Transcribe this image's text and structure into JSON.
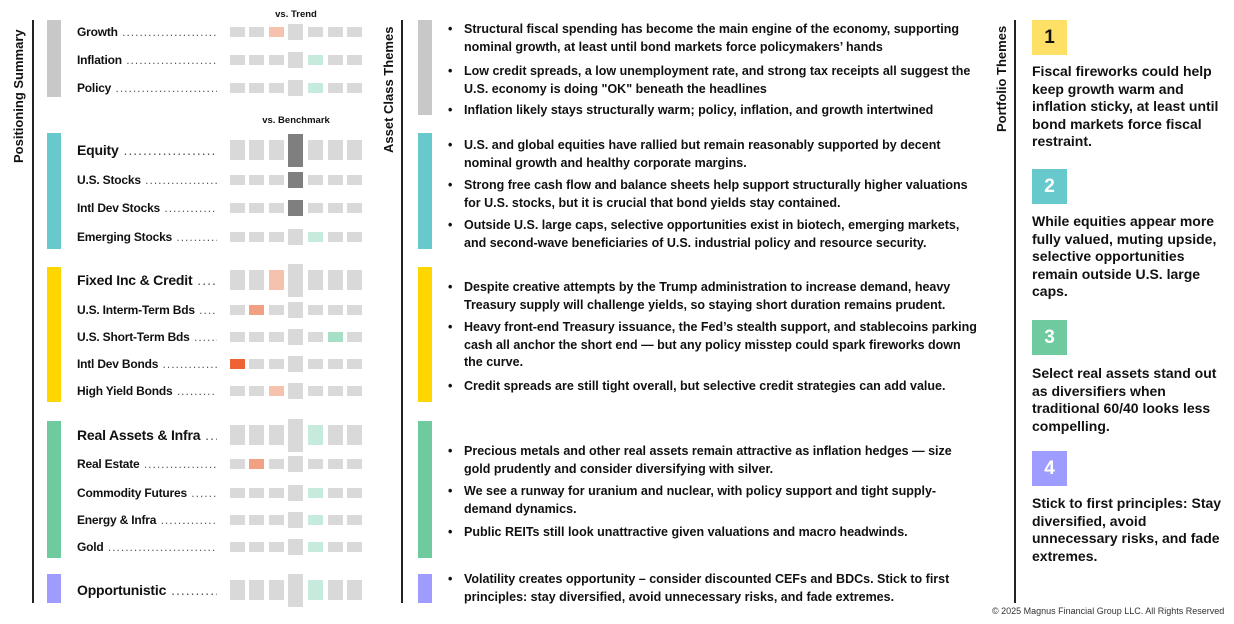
{
  "positioning": {
    "title": "Positioning Summary",
    "header_trend": "vs. Trend",
    "header_benchmark": "vs. Benchmark",
    "colors": {
      "-3": "#ef6234",
      "-2": "#f2a083",
      "-1": "#f5c2ae",
      "0": "#d9d9d9",
      "1": "#c6eadb",
      "2": "#a6dfc6",
      "neutral_hold": "#7f7f7f"
    },
    "groups": [
      {
        "color": "#c8c8c8",
        "rows": [
          {
            "label": "Growth",
            "category": false,
            "score": -1
          },
          {
            "label": "Inflation",
            "category": false,
            "score": 1
          },
          {
            "label": "Policy",
            "category": false,
            "score": 1
          }
        ]
      },
      {
        "color": "#67c9cc",
        "rows": [
          {
            "label": "Equity",
            "category": true,
            "score": 0,
            "neutral_marked": true
          },
          {
            "label": "U.S. Stocks",
            "category": false,
            "score": 0,
            "neutral_marked": true
          },
          {
            "label": "Intl Dev Stocks",
            "category": false,
            "score": 0,
            "neutral_marked": true
          },
          {
            "label": "Emerging Stocks",
            "category": false,
            "score": 1
          }
        ]
      },
      {
        "color": "#ffd600",
        "rows": [
          {
            "label": "Fixed Inc & Credit",
            "category": true,
            "score": -1
          },
          {
            "label": "U.S. Interm-Term Bds",
            "category": false,
            "score": -2
          },
          {
            "label": "U.S. Short-Term Bds",
            "category": false,
            "score": 2
          },
          {
            "label": "Intl Dev Bonds",
            "category": false,
            "score": -3
          },
          {
            "label": "High Yield Bonds",
            "category": false,
            "score": -1
          }
        ]
      },
      {
        "color": "#6fcb9f",
        "rows": [
          {
            "label": "Real Assets & Infra",
            "category": true,
            "score": 1
          },
          {
            "label": "Real Estate",
            "category": false,
            "score": -2
          },
          {
            "label": "Commodity Futures",
            "category": false,
            "score": 1
          },
          {
            "label": "Energy & Infra",
            "category": false,
            "score": 1
          },
          {
            "label": "Gold",
            "category": false,
            "score": 1
          }
        ]
      },
      {
        "color": "#9f9cff",
        "rows": [
          {
            "label": "Opportunistic",
            "category": true,
            "score": 1
          }
        ]
      }
    ]
  },
  "asset_class": {
    "title": "Asset Class Themes",
    "bullets": [
      "Structural fiscal spending has become the main engine of the economy, supporting nominal growth, at least until bond markets force policymakers’ hands",
      "Low credit spreads, a low unemployment rate, and strong tax receipts all suggest the U.S. economy is doing \"OK\" beneath the headlines",
      "Inflation likely stays structurally warm; policy, inflation, and growth intertwined",
      "U.S. and global equities have rallied but remain reasonably supported by decent nominal growth and healthy corporate margins.",
      "Strong free cash flow and balance sheets help support structurally higher valuations for U.S. stocks, but it is crucial that bond yields stay contained.",
      "Outside U.S. large caps, selective opportunities exist in biotech, emerging markets, and second-wave beneficiaries of U.S. industrial policy and resource security.",
      "Despite creative attempts by the Trump administration to increase demand, heavy Treasury supply will challenge yields, so staying short duration remains prudent.",
      "Heavy front-end Treasury issuance, the Fed’s stealth support, and stablecoins parking cash all anchor the short end — but any policy misstep could spark fireworks down the curve.",
      "Credit spreads are still tight overall, but selective credit strategies can add value.",
      "Precious metals and other real assets remain attractive as inflation hedges — size gold prudently and consider diversifying with silver.",
      "We see a runway for uranium and nuclear, with policy support and tight supply-demand dynamics.",
      "Public REITs still look unattractive given valuations and macro headwinds.",
      "Volatility creates opportunity – consider discounted CEFs and BDCs. Stick to first principles: stay diversified, avoid unnecessary risks, and fade extremes."
    ]
  },
  "portfolio": {
    "title": "Portfolio Themes",
    "themes": [
      {
        "num": "1",
        "color": "#ffe066",
        "numcolor": "#111111",
        "text": "Fiscal fireworks could help keep growth warm and inflation sticky, at least until bond markets force fiscal restraint."
      },
      {
        "num": "2",
        "color": "#67c9cc",
        "numcolor": "#ffffff",
        "text": "While equities appear more fully valued, muting upside, selective opportunities remain outside U.S. large caps."
      },
      {
        "num": "3",
        "color": "#6fcb9f",
        "numcolor": "#ffffff",
        "text": "Select real assets stand out as diversifiers when traditional 60/40 looks less compelling."
      },
      {
        "num": "4",
        "color": "#9f9cff",
        "numcolor": "#ffffff",
        "text": "Stick to first principles: Stay diversified, avoid unnecessary risks, and fade extremes."
      }
    ]
  },
  "footer": "© 2025 Magnus Financial Group LLC. All Rights Reserved"
}
